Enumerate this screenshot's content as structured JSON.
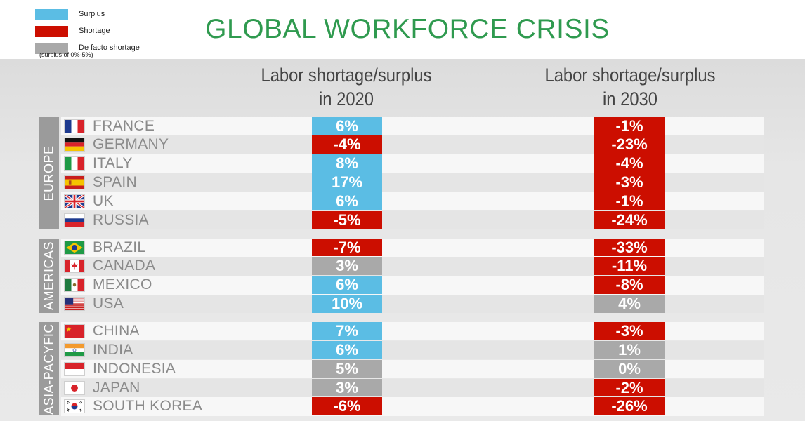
{
  "title": "GLOBAL WORKFORCE CRISIS",
  "legend": {
    "surplus": "Surplus",
    "shortage": "Shortage",
    "defacto": "De facto shortage",
    "defacto_note": "(surplus of 0%-5%)"
  },
  "colors": {
    "surplus": "#5bbde4",
    "shortage": "#cc0e00",
    "defacto": "#a9a9a9",
    "title": "#2f9a4f"
  },
  "chart_data": {
    "type": "table",
    "columns": [
      {
        "line1": "Labor shortage/surplus",
        "line2": "in 2020"
      },
      {
        "line1": "Labor shortage/surplus",
        "line2": "in 2030"
      }
    ],
    "regions": [
      {
        "name": "EUROPE",
        "countries": [
          {
            "name": "FRANCE",
            "flag": "fr-flag-icon",
            "v2020": "6%",
            "c2020": "surplus",
            "v2030": "-1%",
            "c2030": "shortage"
          },
          {
            "name": "GERMANY",
            "flag": "de-flag-icon",
            "v2020": "-4%",
            "c2020": "shortage",
            "v2030": "-23%",
            "c2030": "shortage"
          },
          {
            "name": "ITALY",
            "flag": "it-flag-icon",
            "v2020": "8%",
            "c2020": "surplus",
            "v2030": "-4%",
            "c2030": "shortage"
          },
          {
            "name": "SPAIN",
            "flag": "es-flag-icon",
            "v2020": "17%",
            "c2020": "surplus",
            "v2030": "-3%",
            "c2030": "shortage"
          },
          {
            "name": "UK",
            "flag": "uk-flag-icon",
            "v2020": "6%",
            "c2020": "surplus",
            "v2030": "-1%",
            "c2030": "shortage"
          },
          {
            "name": "RUSSIA",
            "flag": "ru-flag-icon",
            "v2020": "-5%",
            "c2020": "shortage",
            "v2030": "-24%",
            "c2030": "shortage"
          }
        ]
      },
      {
        "name": "AMERICAS",
        "countries": [
          {
            "name": "BRAZIL",
            "flag": "br-flag-icon",
            "v2020": "-7%",
            "c2020": "shortage",
            "v2030": "-33%",
            "c2030": "shortage"
          },
          {
            "name": "CANADA",
            "flag": "ca-flag-icon",
            "v2020": "3%",
            "c2020": "defacto",
            "v2030": "-11%",
            "c2030": "shortage"
          },
          {
            "name": "MEXICO",
            "flag": "mx-flag-icon",
            "v2020": "6%",
            "c2020": "surplus",
            "v2030": "-8%",
            "c2030": "shortage"
          },
          {
            "name": "USA",
            "flag": "us-flag-icon",
            "v2020": "10%",
            "c2020": "surplus",
            "v2030": "4%",
            "c2030": "defacto"
          }
        ]
      },
      {
        "name": "ASIA-PACYFIC",
        "countries": [
          {
            "name": "CHINA",
            "flag": "cn-flag-icon",
            "v2020": "7%",
            "c2020": "surplus",
            "v2030": "-3%",
            "c2030": "shortage"
          },
          {
            "name": "INDIA",
            "flag": "in-flag-icon",
            "v2020": "6%",
            "c2020": "surplus",
            "v2030": "1%",
            "c2030": "defacto"
          },
          {
            "name": "INDONESIA",
            "flag": "id-flag-icon",
            "v2020": "5%",
            "c2020": "defacto",
            "v2030": "0%",
            "c2030": "defacto"
          },
          {
            "name": "JAPAN",
            "flag": "jp-flag-icon",
            "v2020": "3%",
            "c2020": "defacto",
            "v2030": "-2%",
            "c2030": "shortage"
          },
          {
            "name": "SOUTH KOREA",
            "flag": "kr-flag-icon",
            "v2020": "-6%",
            "c2020": "shortage",
            "v2030": "-26%",
            "c2030": "shortage"
          }
        ]
      }
    ]
  }
}
